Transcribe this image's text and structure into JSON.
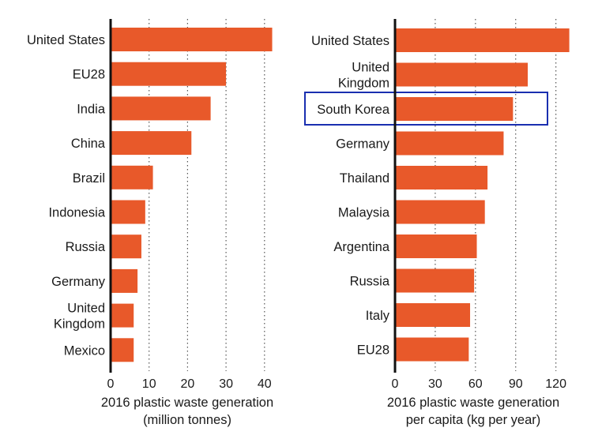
{
  "colors": {
    "bar": "#e8592a",
    "axis": "#111111",
    "grid": "#555555",
    "highlight": "#1a2fb0"
  },
  "chart_data": [
    {
      "type": "bar",
      "orientation": "horizontal",
      "categories": [
        "United States",
        "EU28",
        "India",
        "China",
        "Brazil",
        "Indonesia",
        "Russia",
        "Germany",
        "United Kingdom",
        "Mexico"
      ],
      "category_lines": [
        [
          "United States"
        ],
        [
          "EU28"
        ],
        [
          "India"
        ],
        [
          "China"
        ],
        [
          "Brazil"
        ],
        [
          "Indonesia"
        ],
        [
          "Russia"
        ],
        [
          "Germany"
        ],
        [
          "United",
          "Kingdom"
        ],
        [
          "Mexico"
        ]
      ],
      "values": [
        42,
        30,
        26,
        21,
        11,
        9,
        8,
        7,
        6,
        6
      ],
      "xlim": [
        0,
        45
      ],
      "xticks": [
        0,
        10,
        20,
        30,
        40
      ],
      "xlabel_lines": [
        "2016 plastic waste generation",
        "(million tonnes)"
      ],
      "grid": "vertical-dotted"
    },
    {
      "type": "bar",
      "orientation": "horizontal",
      "categories": [
        "United States",
        "United Kingdom",
        "South Korea",
        "Germany",
        "Thailand",
        "Malaysia",
        "Argentina",
        "Russia",
        "Italy",
        "EU28"
      ],
      "category_lines": [
        [
          "United States"
        ],
        [
          "United",
          "Kingdom"
        ],
        [
          "South Korea"
        ],
        [
          "Germany"
        ],
        [
          "Thailand"
        ],
        [
          "Malaysia"
        ],
        [
          "Argentina"
        ],
        [
          "Russia"
        ],
        [
          "Italy"
        ],
        [
          "EU28"
        ]
      ],
      "values": [
        130,
        99,
        88,
        81,
        69,
        67,
        61,
        59,
        56,
        55
      ],
      "highlight": "South Korea",
      "xlim": [
        0,
        135
      ],
      "xticks": [
        0,
        30,
        60,
        90,
        120
      ],
      "xlabel_lines": [
        "2016 plastic waste generation",
        "per capita (kg per year)"
      ],
      "grid": "vertical-dotted"
    }
  ]
}
